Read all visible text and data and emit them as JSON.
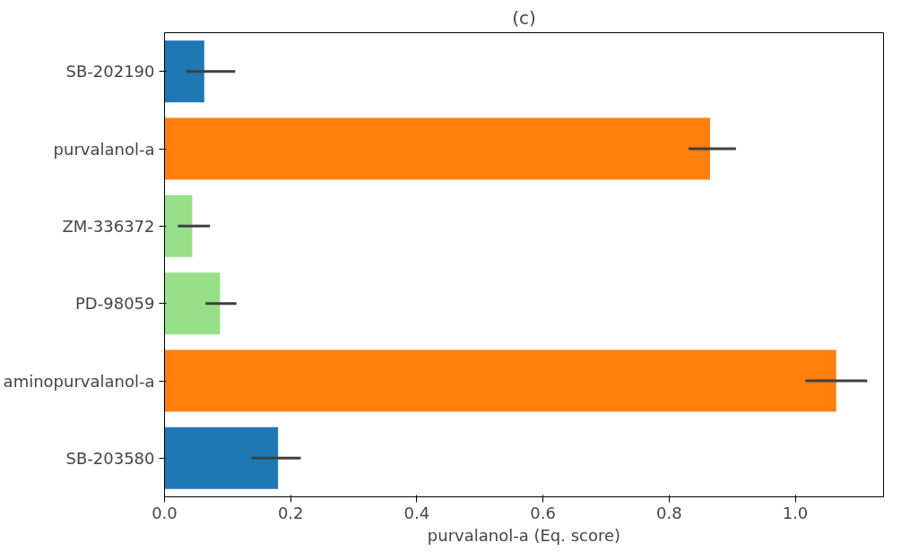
{
  "chart_data": {
    "type": "bar",
    "orientation": "horizontal",
    "title": "(c)",
    "xlabel": "purvalanol-a (Eq. score)",
    "categories": [
      "SB-202190",
      "purvalanol-a",
      "ZM-336372",
      "PD-98059",
      "aminopurvalanol-a",
      "SB-203580"
    ],
    "values": [
      0.063,
      0.865,
      0.044,
      0.088,
      1.065,
      0.18
    ],
    "colors": [
      "#1f77b4",
      "#ff7f0e",
      "#98df8a",
      "#98df8a",
      "#ff7f0e",
      "#1f77b4"
    ],
    "errors": [
      [
        0.034,
        0.112
      ],
      [
        0.831,
        0.906
      ],
      [
        0.021,
        0.072
      ],
      [
        0.065,
        0.114
      ],
      [
        1.016,
        1.114
      ],
      [
        0.138,
        0.216
      ]
    ],
    "xlim": [
      0,
      1.14
    ],
    "xticks": [
      {
        "value": 0,
        "label": "0.0"
      },
      0.2,
      0.4,
      0.6,
      0.8,
      {
        "value": 1,
        "label": "1.0"
      }
    ],
    "grid": false
  }
}
